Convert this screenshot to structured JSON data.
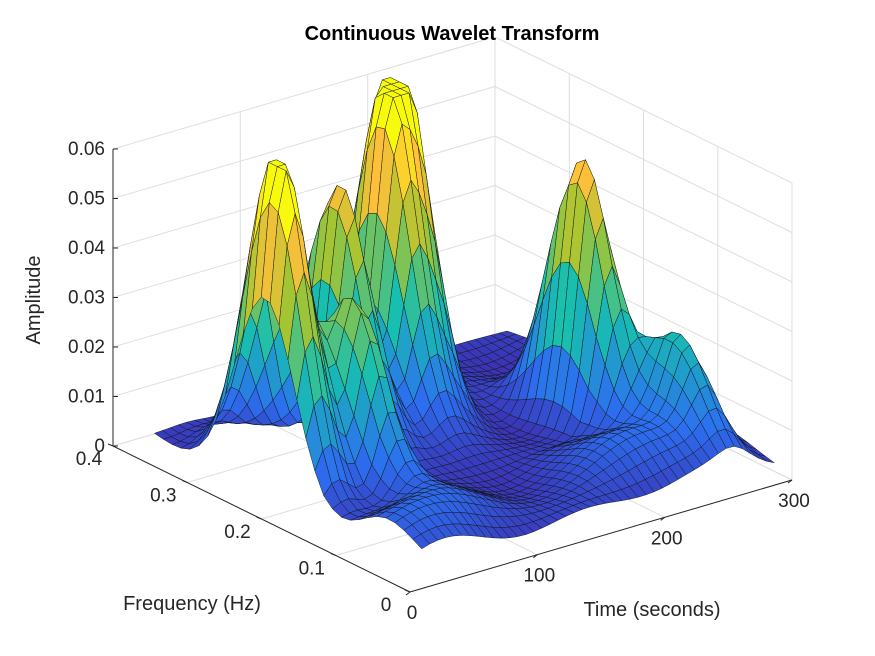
{
  "chart_data": {
    "type": "surface",
    "title": "Continuous Wavelet Transform",
    "xlabel": "Time (seconds)",
    "ylabel": "Frequency (Hz)",
    "zlabel": "Amplitude",
    "xlim": [
      0,
      300
    ],
    "ylim": [
      0,
      0.4
    ],
    "zlim": [
      0,
      0.06
    ],
    "xticks": [
      "0",
      "100",
      "200",
      "300"
    ],
    "yticks": [
      "0",
      "0.1",
      "0.2",
      "0.3",
      "0.4"
    ],
    "zticks": [
      "0",
      "0.01",
      "0.02",
      "0.03",
      "0.04",
      "0.05",
      "0.06"
    ],
    "grid": true,
    "colormap": "parula",
    "colors": {
      "low": "#3e26a8",
      "mid_low": "#2c6ff0",
      "mid": "#17bfb0",
      "mid_high": "#a6c531",
      "high": "#ffc03a",
      "peak": "#f8fa0d"
    },
    "peaks": [
      {
        "time": 25,
        "frequency": 0.22,
        "amplitude": 0.057
      },
      {
        "time": 42,
        "frequency": 0.25,
        "amplitude": 0.043
      },
      {
        "time": 68,
        "frequency": 0.19,
        "amplitude": 0.041
      },
      {
        "time": 108,
        "frequency": 0.28,
        "amplitude": 0.054
      },
      {
        "time": 150,
        "frequency": 0.29,
        "amplitude": 0.06
      },
      {
        "time": 172,
        "frequency": 0.31,
        "amplitude": 0.066
      },
      {
        "time": 240,
        "frequency": 0.18,
        "amplitude": 0.056
      },
      {
        "time": 260,
        "frequency": 0.09,
        "amplitude": 0.024
      }
    ]
  }
}
